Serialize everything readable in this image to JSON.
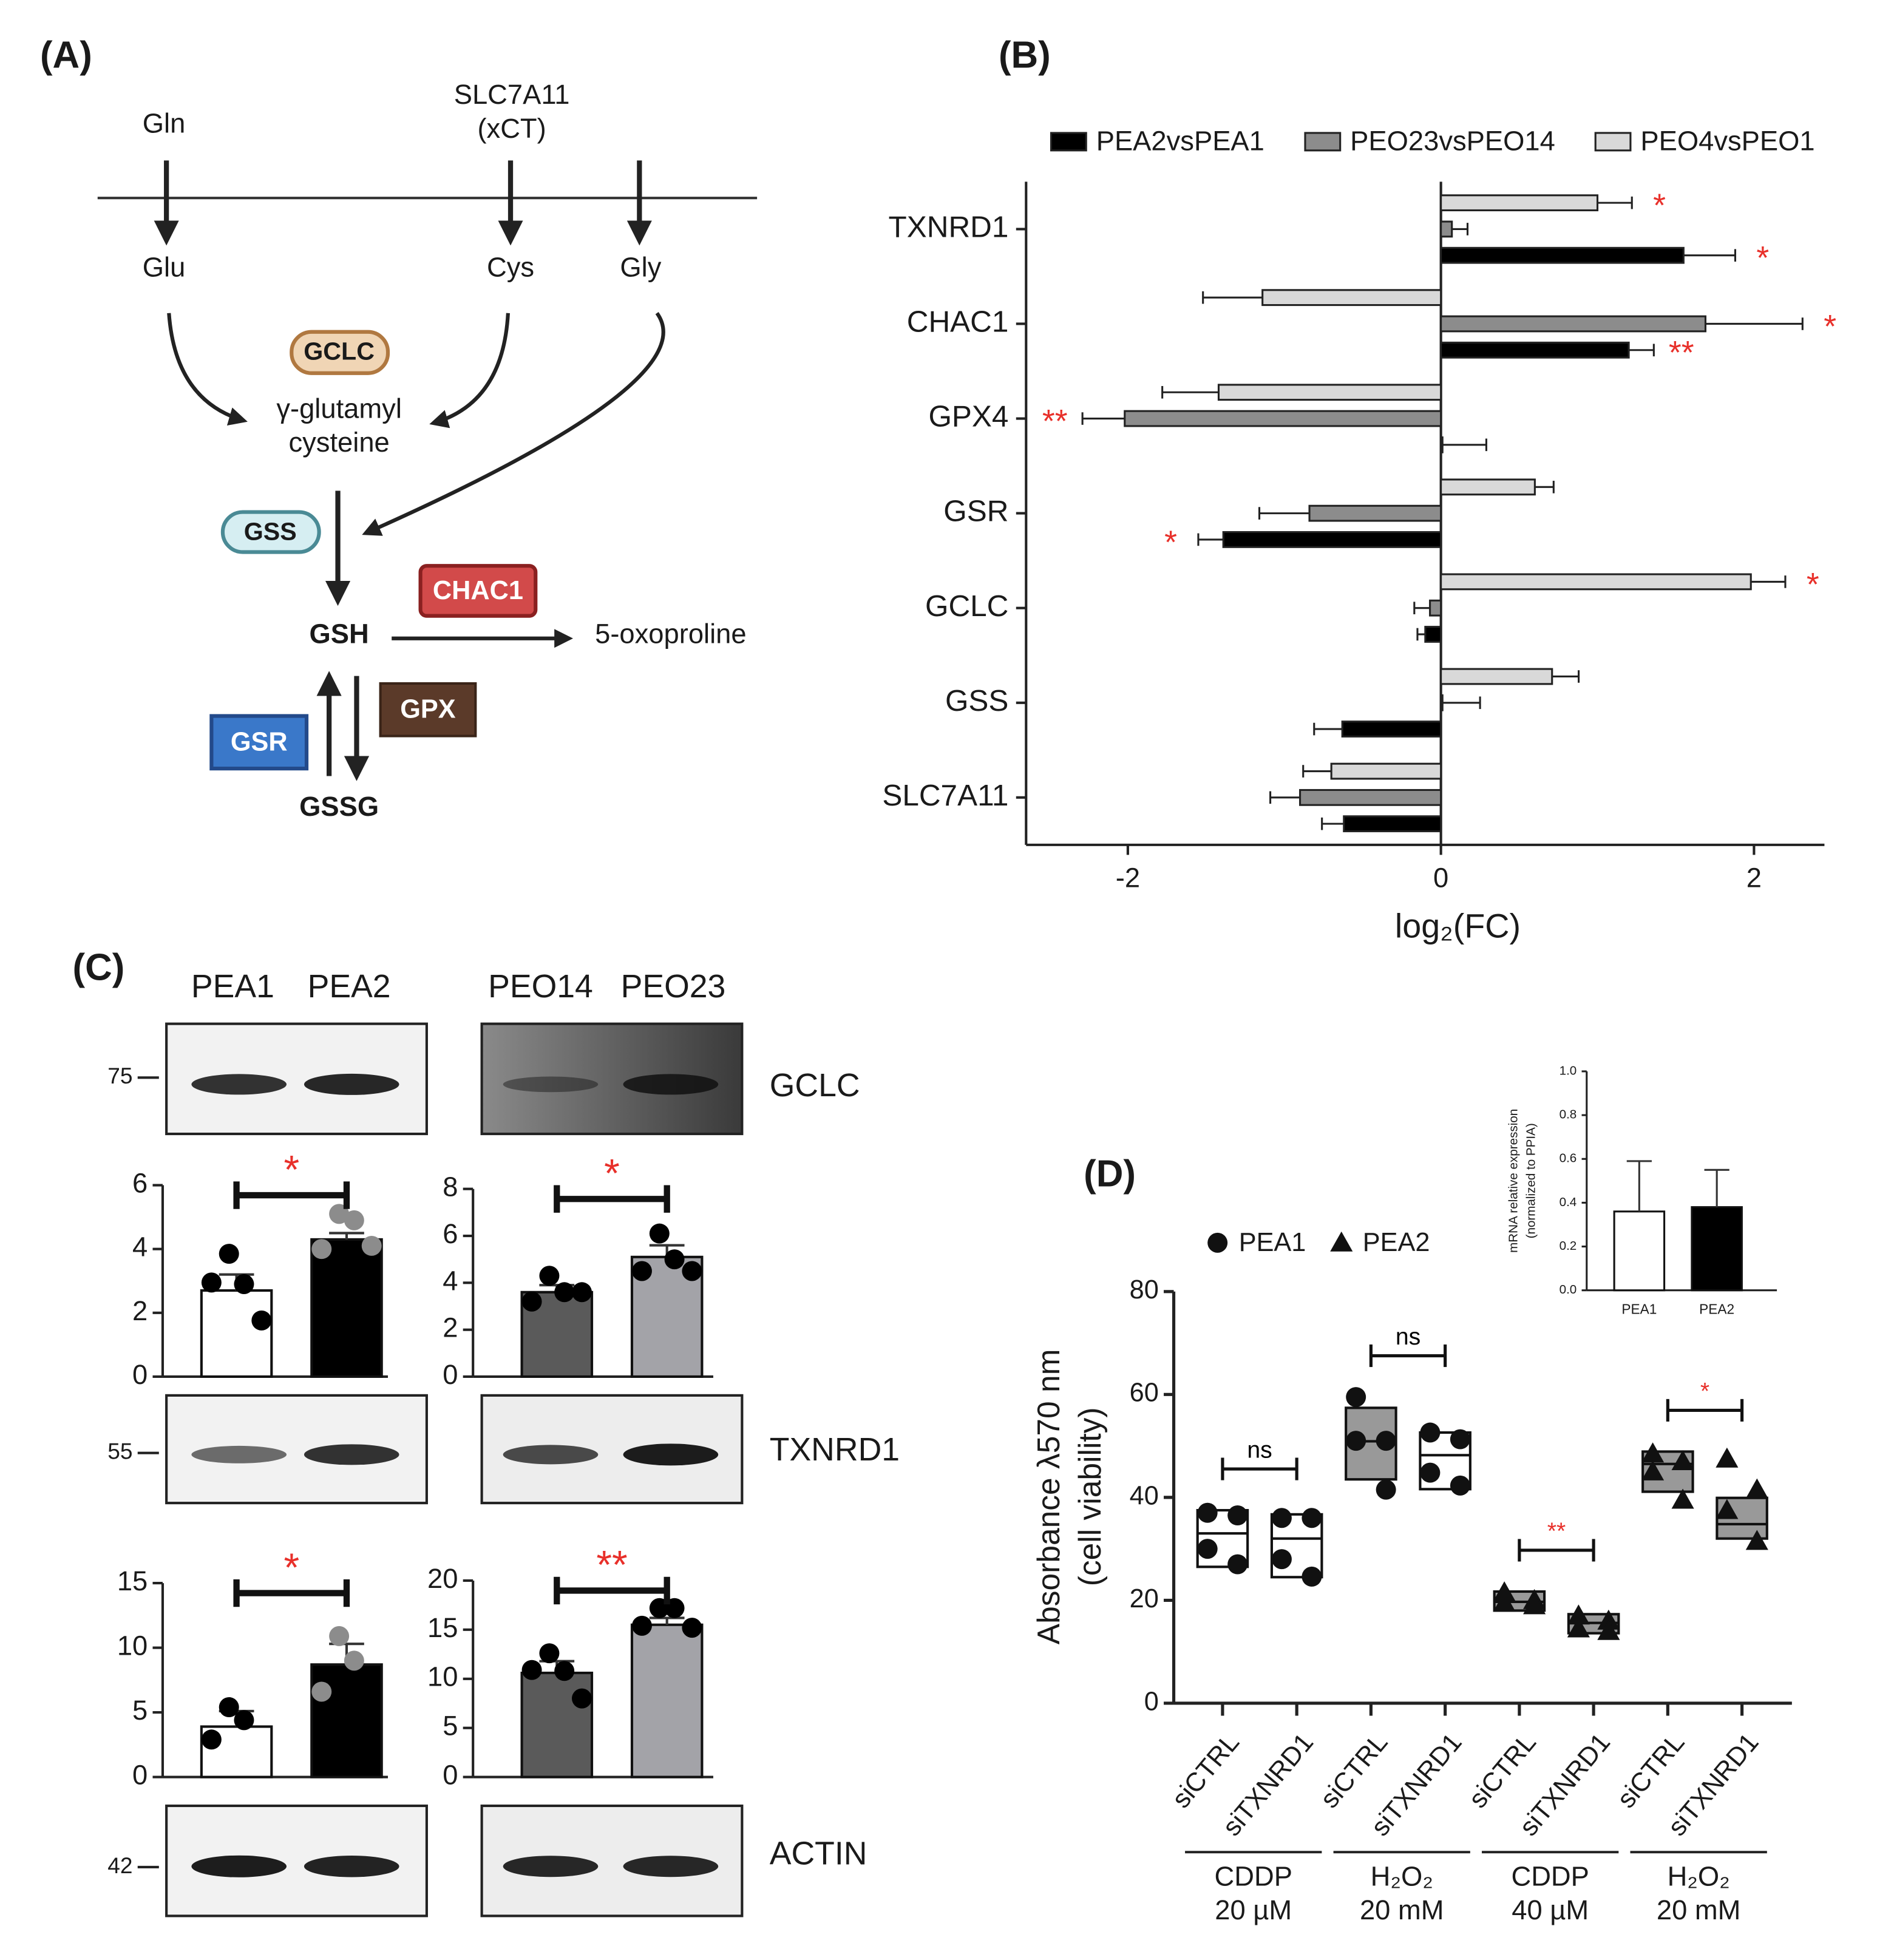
{
  "panel_labels": [
    "(A)",
    "(B)",
    "(C)",
    "(D)"
  ],
  "pathway": {
    "nodes": [
      "Gln",
      "SLC7A11",
      "(xCT)",
      "Glu",
      "Cys",
      "Gly",
      "GCLC",
      "γ-glutamyl",
      "cysteine",
      "GSS",
      "GSH",
      "CHAC1",
      "5-oxoproline",
      "GPX",
      "GSR",
      "GSSG"
    ]
  },
  "blots": {
    "lanes": [
      "PEA1",
      "PEA2",
      "PEO14",
      "PEO23"
    ],
    "proteins": [
      "GCLC",
      "TXNRD1",
      "ACTIN"
    ],
    "markers": [
      75,
      55,
      42
    ]
  },
  "chart_data": [
    {
      "type": "hbar",
      "categories": [
        "TXNRD1",
        "CHAC1",
        "GPX4",
        "GSR",
        "GCLC",
        "GSS",
        "SLC7A11"
      ],
      "series": [
        {
          "name": "PEA2vsPEA1",
          "color": "#000000",
          "values": [
            1.55,
            1.2,
            0.01,
            -1.39,
            -0.1,
            -0.63,
            -0.62
          ],
          "errors": [
            0.33,
            0.16,
            0.28,
            0.16,
            0.05,
            0.18,
            0.14
          ],
          "significance": [
            "*",
            "**",
            null,
            "*",
            null,
            null,
            null
          ]
        },
        {
          "name": "PEO23vsPEO14",
          "color": "#8c8c8c",
          "values": [
            0.07,
            1.69,
            -2.02,
            -0.84,
            -0.07,
            0.01,
            -0.9
          ],
          "errors": [
            0.1,
            0.62,
            0.27,
            0.32,
            0.1,
            0.24,
            0.19
          ],
          "significance": [
            null,
            "*",
            "**",
            null,
            null,
            null,
            null
          ]
        },
        {
          "name": "PEO4vsPEO1",
          "color": "#d9d9d9",
          "values": [
            1.0,
            -1.14,
            -1.42,
            0.6,
            1.98,
            0.71,
            -0.7
          ],
          "errors": [
            0.22,
            0.38,
            0.36,
            0.12,
            0.22,
            0.17,
            0.18
          ],
          "significance": [
            "*",
            null,
            null,
            null,
            "*",
            null,
            null
          ]
        }
      ],
      "significance_color": "#e8302a",
      "xlim": [
        -2.65,
        2.45
      ],
      "xticks": [
        -2,
        0,
        2
      ],
      "xlabel": "log₂(FC)"
    },
    {
      "type": "bar",
      "values": [
        2.7,
        4.3
      ],
      "errors": [
        0.5,
        0.2
      ],
      "colors": [
        "#ffffff",
        "#000000"
      ],
      "points": [
        [
          3.85,
          2.9,
          2.95,
          1.76
        ],
        [
          5.1,
          4.9,
          4.0,
          4.1
        ]
      ],
      "point_colors": [
        "#000000",
        "#8c8c8c"
      ],
      "ylim": [
        0,
        6
      ],
      "yticks": [
        0,
        2,
        4,
        6
      ],
      "significance": "*",
      "significance_color": "#e8302a"
    },
    {
      "type": "bar",
      "values": [
        3.6,
        5.1
      ],
      "errors": [
        0.3,
        0.5
      ],
      "colors": [
        "#5a5a5a",
        "#a3a3a8"
      ],
      "points": [
        [
          4.3,
          3.6,
          3.2,
          3.6
        ],
        [
          6.1,
          5.0,
          4.5,
          4.5
        ]
      ],
      "point_colors": [
        "#000000",
        "#000000"
      ],
      "ylim": [
        0,
        8
      ],
      "yticks": [
        0,
        2,
        4,
        6,
        8
      ],
      "significance": "*",
      "significance_color": "#e8302a"
    },
    {
      "type": "bar",
      "values": [
        3.9,
        8.7
      ],
      "errors": [
        1.2,
        1.6
      ],
      "colors": [
        "#ffffff",
        "#000000"
      ],
      "points": [
        [
          5.4,
          4.4,
          2.9
        ],
        [
          10.9,
          9.0,
          6.6
        ]
      ],
      "point_colors": [
        "#000000",
        "#8c8c8c"
      ],
      "ylim": [
        0,
        15
      ],
      "yticks": [
        0,
        5,
        10,
        15
      ],
      "significance": "*",
      "significance_color": "#e8302a"
    },
    {
      "type": "bar",
      "values": [
        10.6,
        15.5
      ],
      "errors": [
        1.2,
        0.7
      ],
      "colors": [
        "#5a5a5a",
        "#a3a3a8"
      ],
      "points": [
        [
          12.6,
          10.8,
          10.9,
          8.0
        ],
        [
          17.2,
          17.2,
          15.4,
          15.2
        ]
      ],
      "point_colors": [
        "#000000",
        "#000000"
      ],
      "ylim": [
        0,
        20
      ],
      "yticks": [
        0,
        5,
        10,
        15,
        20
      ],
      "significance": "**",
      "significance_color": "#e8302a"
    },
    {
      "type": "box",
      "ylabel": [
        "Absorbance λ570 nm",
        "(cell viability)"
      ],
      "categories": [
        "siCTRL",
        "siTXNRD1",
        "siCTRL",
        "siTXNRD1",
        "siCTRL",
        "siTXNRD1",
        "siCTRL",
        "siTXNRD1"
      ],
      "groups": [
        {
          "name": "CDDP",
          "dose": "20 µM"
        },
        {
          "name": "H₂O₂",
          "dose": "20 mM"
        },
        {
          "name": "CDDP",
          "dose": "40 µM"
        },
        {
          "name": "H₂O₂",
          "dose": "20 mM"
        }
      ],
      "series": [
        {
          "name": "PEA1",
          "marker": "circle",
          "boxes": [
            {
              "low": 26.5,
              "median": 33,
              "high": 37.5
            },
            {
              "low": 24.5,
              "median": 32,
              "high": 36.7
            },
            {
              "low": 43.5,
              "median": 50.9,
              "high": 57.4
            },
            {
              "low": 41.6,
              "median": 48.2,
              "high": 52.6
            }
          ],
          "points": [
            [
              37,
              36.5,
              30,
              27
            ],
            [
              36,
              36,
              28,
              24.6
            ],
            [
              59.5,
              51,
              51,
              41.5
            ],
            [
              52.6,
              51.3,
              44.8,
              42.3
            ]
          ],
          "colors": [
            "#ffffff",
            "#ffffff",
            "#999999",
            "#ffffff"
          ]
        },
        {
          "name": "PEA2",
          "marker": "triangle",
          "boxes": [
            {
              "low": 18,
              "median": 19.7,
              "high": 21.7
            },
            {
              "low": 13.6,
              "median": 15.6,
              "high": 17.3
            },
            {
              "low": 41.1,
              "median": 46.5,
              "high": 48.9
            },
            {
              "low": 32,
              "median": 34.8,
              "high": 39.9
            }
          ],
          "points": [
            [
              21.5,
              20,
              19.5,
              19
            ],
            [
              17,
              16,
              14.5,
              14
            ],
            [
              48.5,
              47,
              45,
              39.5
            ],
            [
              47.5,
              41.5,
              37.5,
              31.5
            ]
          ],
          "colors": [
            "#999999",
            "#999999",
            "#999999",
            "#999999"
          ]
        }
      ],
      "ylim": [
        0,
        80
      ],
      "yticks": [
        0,
        20,
        40,
        60,
        80
      ],
      "significance": [
        "ns",
        "ns",
        "**",
        "*"
      ],
      "significance_colors": [
        "#000000",
        "#000000",
        "#e8302a",
        "#e8302a"
      ]
    },
    {
      "type": "bar",
      "categories": [
        "PEA1",
        "PEA2"
      ],
      "values": [
        0.36,
        0.38
      ],
      "errors": [
        0.23,
        0.17
      ],
      "colors": [
        "#ffffff",
        "#000000"
      ],
      "ylim": [
        0,
        1
      ],
      "yticks": [
        {
          "value": 0,
          "label": "0.0"
        },
        0.2,
        0.4,
        0.6,
        0.8,
        {
          "value": 1,
          "label": "1.0"
        }
      ],
      "ylabel": [
        "mRNA relative expression",
        "(normalized to PPIA)"
      ]
    }
  ]
}
